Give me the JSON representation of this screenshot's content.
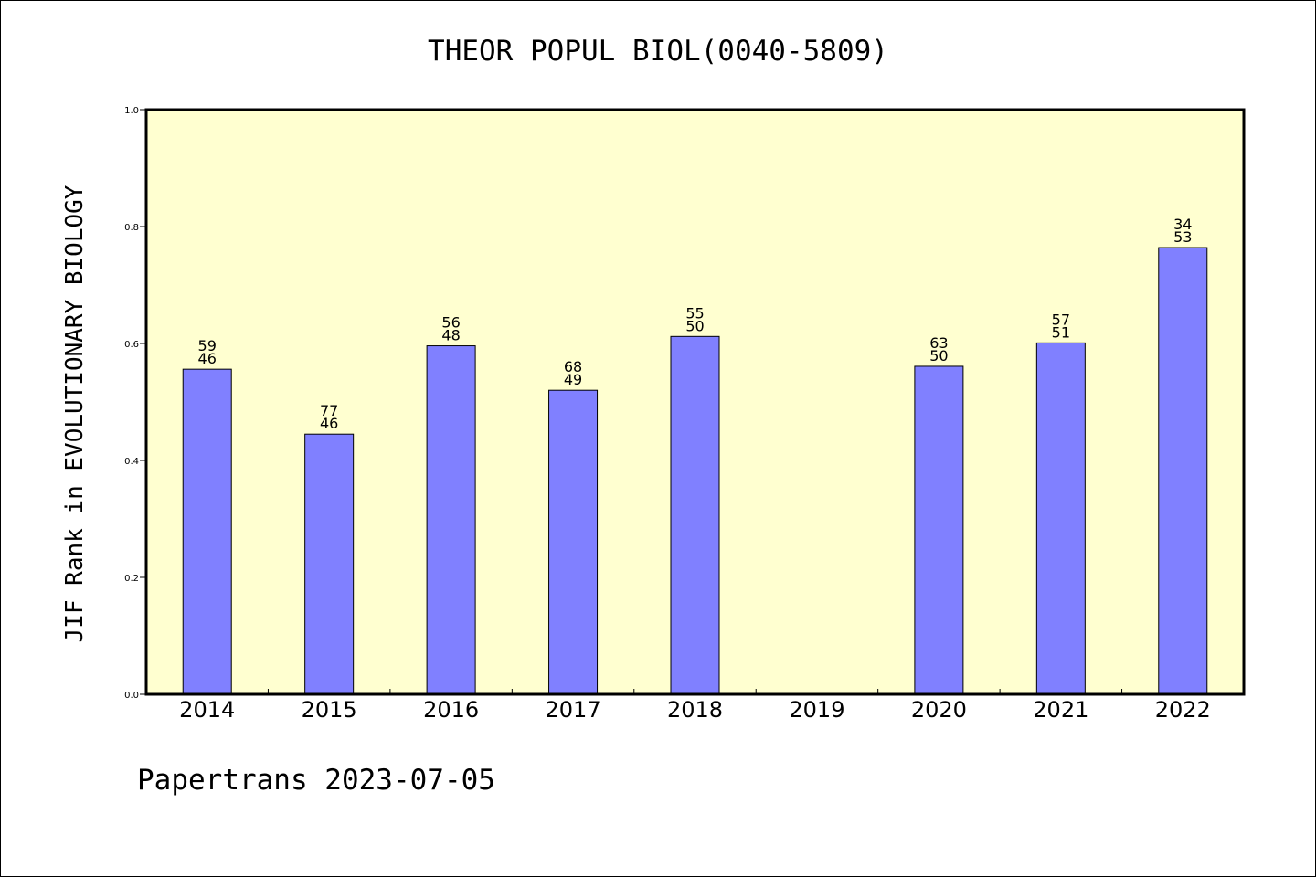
{
  "chart_data": {
    "type": "bar",
    "title": "THEOR POPUL BIOL(0040-5809)",
    "xlabel": "",
    "ylabel": "JIF Rank in EVOLUTIONARY BIOLOGY",
    "ylim": [
      0,
      1.0
    ],
    "yticks": [
      "0.0",
      "0.2",
      "0.4",
      "0.6",
      "0.8",
      "1.0"
    ],
    "categories": [
      "2014",
      "2015",
      "2016",
      "2017",
      "2018",
      "2019",
      "2020",
      "2021",
      "2022"
    ],
    "values": [
      0.556,
      0.445,
      0.596,
      0.52,
      0.612,
      null,
      0.561,
      0.601,
      0.764
    ],
    "labels": [
      [
        "59",
        "46"
      ],
      [
        "77",
        "46"
      ],
      [
        "56",
        "48"
      ],
      [
        "68",
        "49"
      ],
      [
        "55",
        "50"
      ],
      null,
      [
        "63",
        "50"
      ],
      [
        "57",
        "51"
      ],
      [
        "34",
        "53"
      ]
    ],
    "grid": false,
    "colors": {
      "bar": "#8080ff",
      "plot_background": "#ffffd0",
      "axis": "#000000"
    }
  },
  "footer": "Papertrans 2023-07-05"
}
